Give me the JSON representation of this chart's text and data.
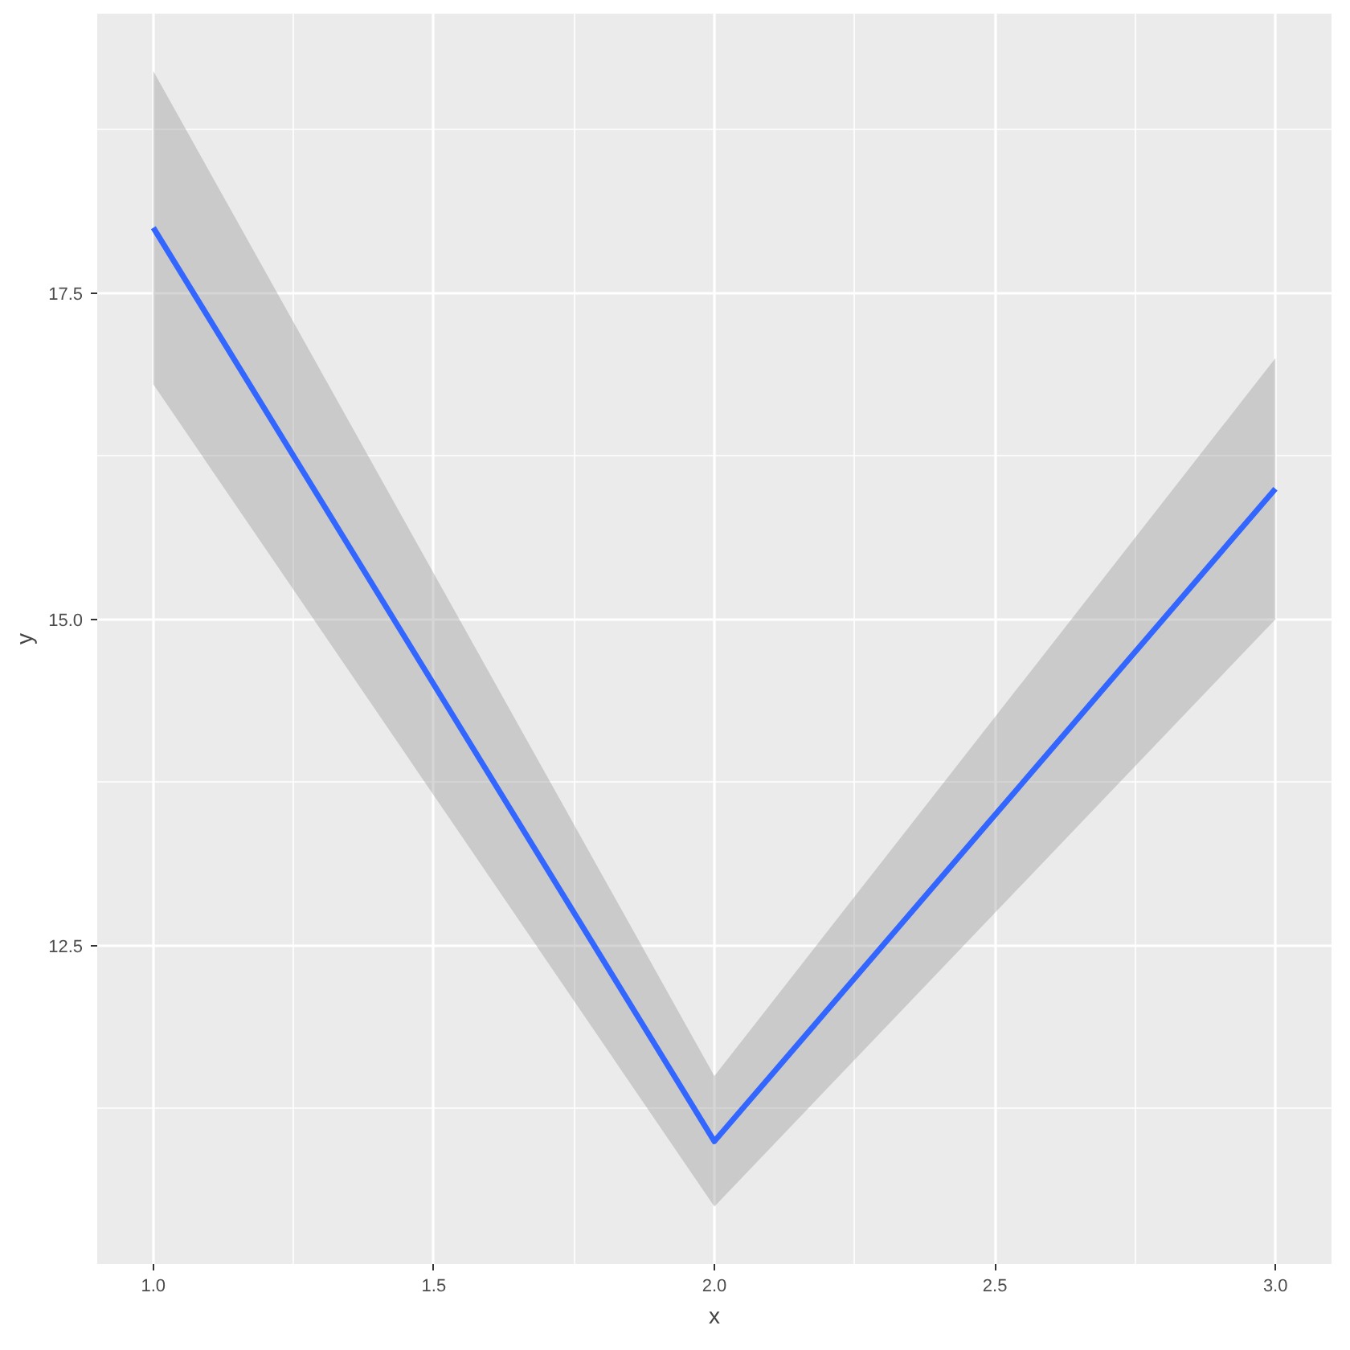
{
  "chart_data": {
    "type": "line",
    "xlabel": "x",
    "ylabel": "y",
    "x": [
      1,
      2,
      3
    ],
    "series": [
      {
        "color": "#3366ff",
        "values": [
          18,
          11,
          16
        ],
        "lower": [
          16.8,
          10.5,
          15
        ],
        "upper": [
          19.2,
          11.5,
          17
        ]
      }
    ],
    "xlim": [
      0.9,
      3.1
    ],
    "ylim": [
      10.06,
      19.64
    ],
    "xticks": [
      {
        "value": 1,
        "label": "1.0"
      },
      {
        "value": 1.5,
        "label": "1.5"
      },
      {
        "value": 2,
        "label": "2.0"
      },
      {
        "value": 2.5,
        "label": "2.5"
      },
      {
        "value": 3,
        "label": "3.0"
      }
    ],
    "yticks": [
      {
        "value": 12.5,
        "label": "12.5"
      },
      {
        "value": 15,
        "label": "15.0"
      },
      {
        "value": 17.5,
        "label": "17.5"
      }
    ],
    "grid": true,
    "marker": "none",
    "line_style": "solid"
  }
}
